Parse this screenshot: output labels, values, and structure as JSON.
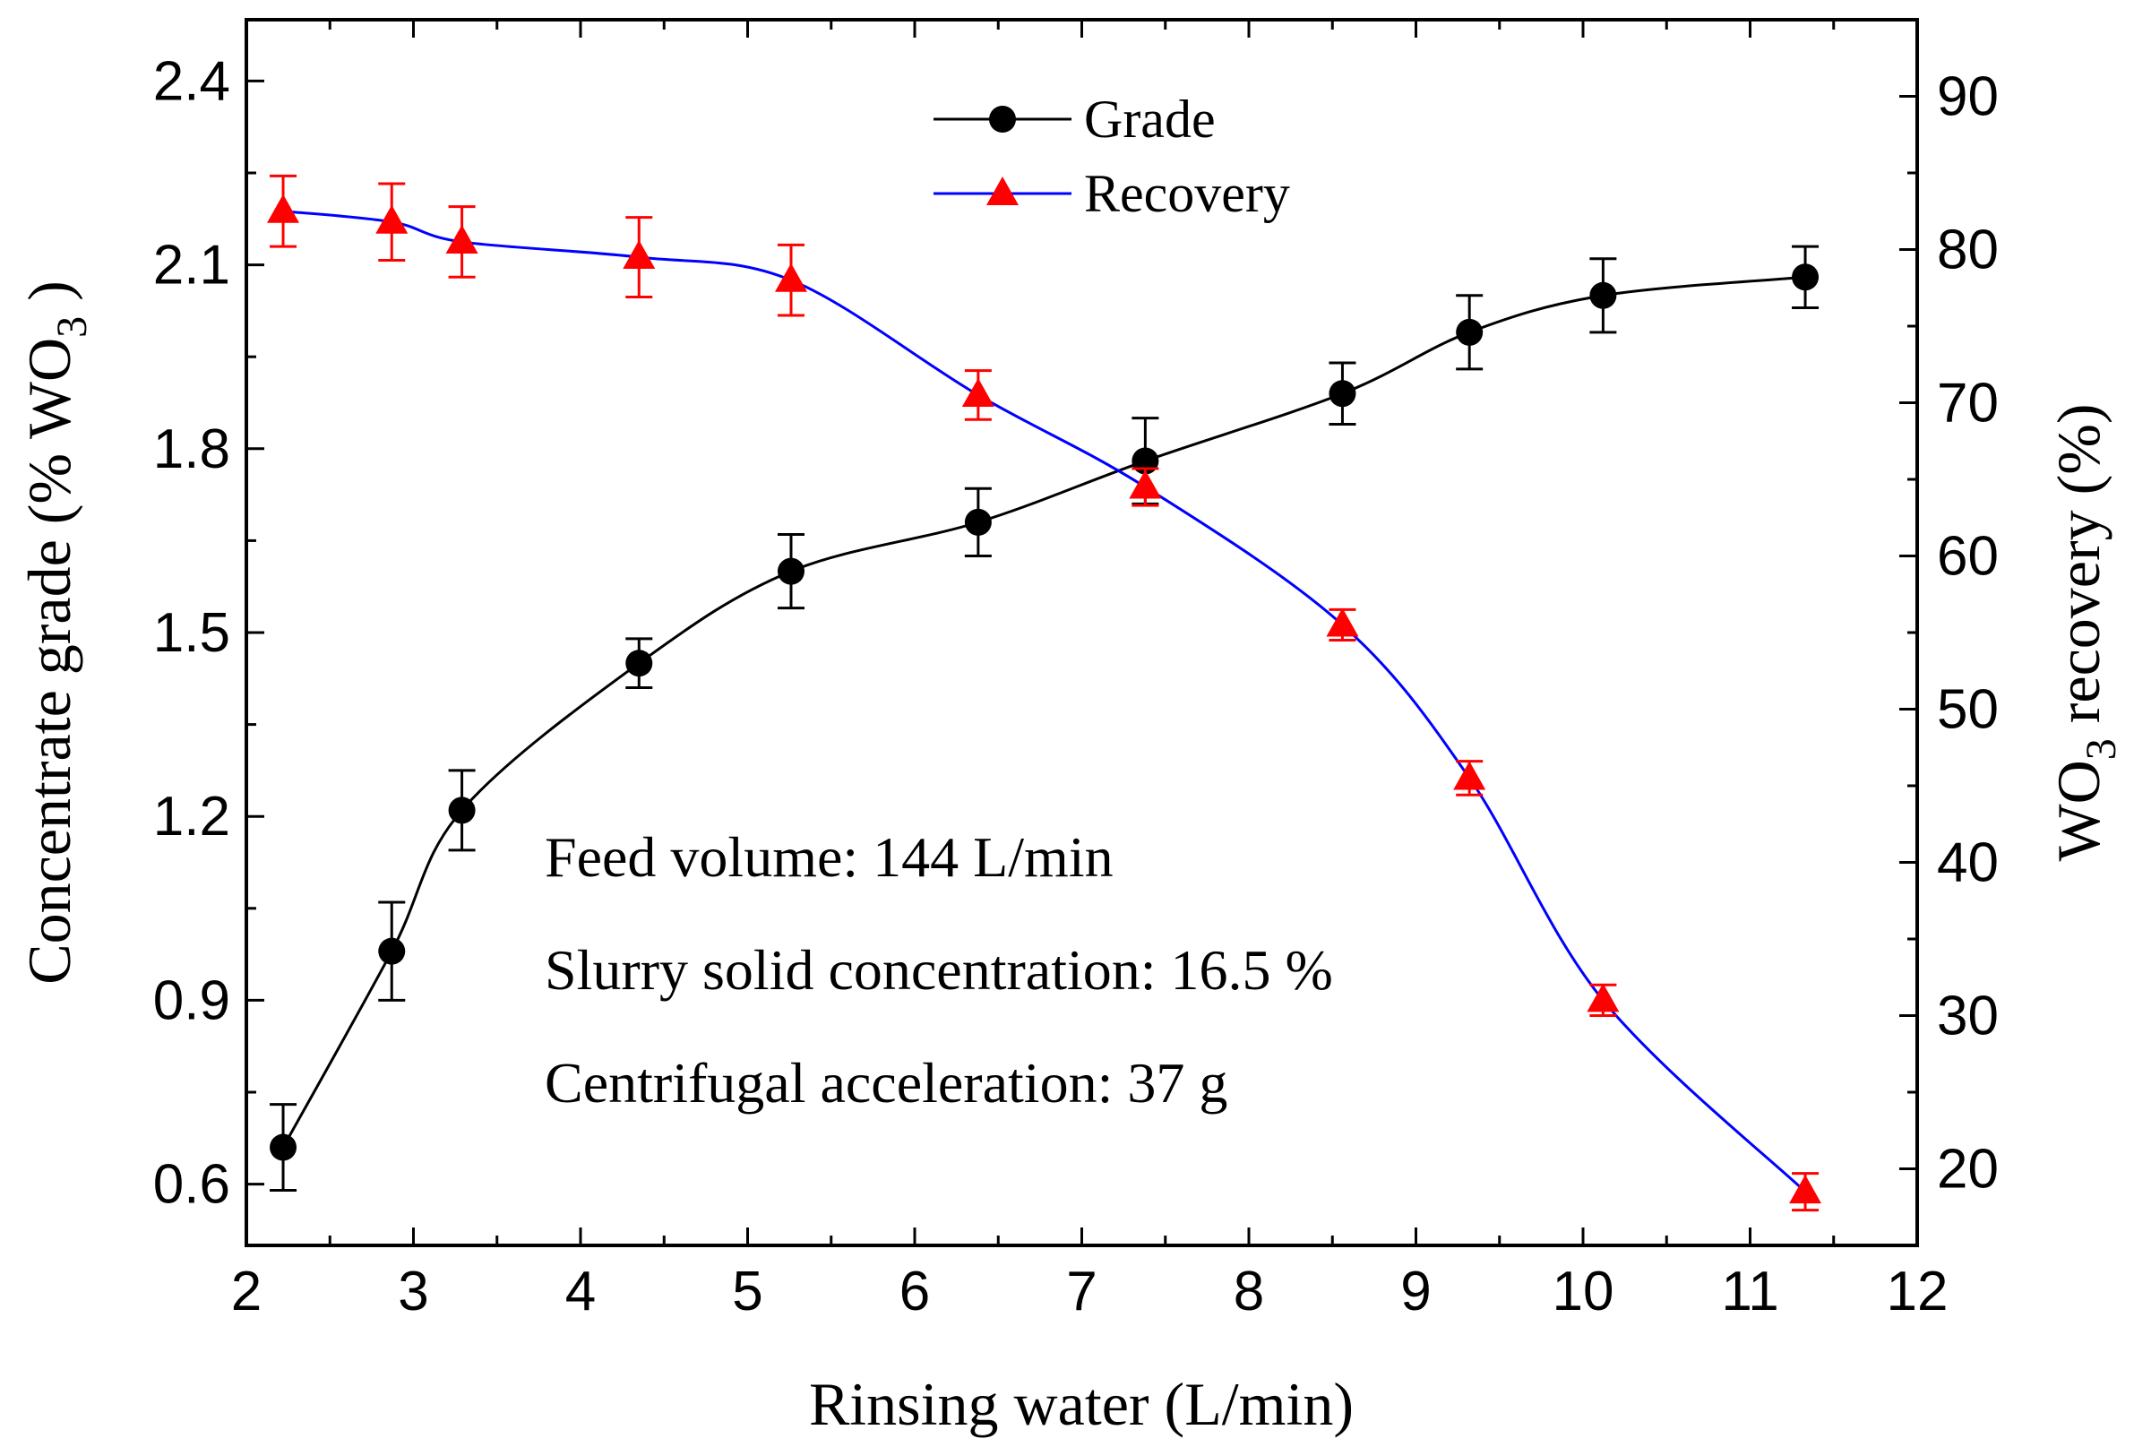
{
  "chart_data": {
    "type": "line",
    "xlabel": "Rinsing water  (L/min)",
    "ylabel_left": {
      "main": "Concentrate grade (%  WO",
      "sub": "3",
      "tail": " )"
    },
    "ylabel_right": {
      "main": "WO",
      "sub": "3",
      "tail": " recovery (%)"
    },
    "xlim": [
      2,
      12
    ],
    "ylim_left": [
      0.5,
      2.5
    ],
    "ylim_right": [
      15,
      95
    ],
    "x_ticks": [
      2,
      3,
      4,
      5,
      6,
      7,
      8,
      9,
      10,
      11,
      12
    ],
    "x_tick_labels": [
      "2",
      "3",
      "4",
      "5",
      "6",
      "7",
      "8",
      "9",
      "10",
      "11",
      "12"
    ],
    "y_left_ticks": [
      0.6,
      0.9,
      1.2,
      1.5,
      1.8,
      2.1,
      2.4
    ],
    "y_left_tick_labels": [
      "0.6",
      "0.9",
      "1.2",
      "1.5",
      "1.8",
      "2.1",
      "2.4"
    ],
    "y_right_ticks": [
      20,
      30,
      40,
      50,
      60,
      70,
      80,
      90
    ],
    "y_right_tick_labels": [
      "20",
      "30",
      "40",
      "50",
      "60",
      "70",
      "80",
      "90"
    ],
    "series": [
      {
        "name": "Grade",
        "axis": "left",
        "marker": "circle",
        "color": "#000000",
        "error_color": "#000000",
        "x": [
          2.22,
          2.87,
          3.29,
          4.35,
          5.26,
          6.38,
          7.38,
          8.56,
          9.32,
          10.12,
          11.33
        ],
        "y": [
          0.66,
          0.98,
          1.21,
          1.45,
          1.6,
          1.68,
          1.78,
          1.89,
          1.99,
          2.05,
          2.08
        ],
        "err": [
          0.07,
          0.08,
          0.065,
          0.04,
          0.06,
          0.055,
          0.07,
          0.05,
          0.06,
          0.06,
          0.05
        ]
      },
      {
        "name": "Recovery",
        "axis": "right",
        "marker": "triangle",
        "color": "#0000ff",
        "marker_color": "#ff0000",
        "error_color": "#ff0000",
        "x": [
          2.22,
          2.87,
          3.29,
          4.35,
          5.26,
          6.38,
          7.38,
          8.56,
          9.32,
          10.12,
          11.33
        ],
        "y": [
          82.5,
          81.8,
          80.5,
          79.5,
          78.0,
          70.5,
          64.5,
          55.5,
          45.5,
          31.0,
          18.5
        ],
        "err": [
          2.3,
          2.5,
          2.3,
          2.6,
          2.3,
          1.6,
          1.2,
          1.0,
          1.1,
          1.0,
          1.2
        ]
      }
    ],
    "legend": {
      "position": "top-center",
      "entries": [
        "Grade",
        "Recovery"
      ]
    },
    "annotations": [
      "Feed volume: 144 L/min",
      "Slurry solid concentration: 16.5 %",
      "Centrifugal acceleration: 37 g"
    ]
  }
}
